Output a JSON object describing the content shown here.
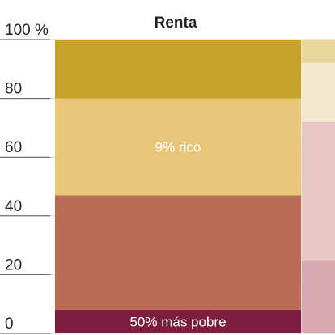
{
  "chart_data": {
    "type": "bar",
    "stacked": true,
    "title": "Renta",
    "ylim": [
      0,
      100
    ],
    "yticks": [
      {
        "value": 0,
        "label": "0"
      },
      {
        "value": 20,
        "label": "20"
      },
      {
        "value": 40,
        "label": "40"
      },
      {
        "value": 60,
        "label": "60"
      },
      {
        "value": 80,
        "label": "80"
      },
      {
        "value": 100,
        "label": "100 %"
      }
    ],
    "grid": true,
    "categories": [
      "Renta"
    ],
    "series": [
      {
        "id": "poorest-50",
        "name": "50% más pobre",
        "values": [
          8
        ],
        "color": "#7d1d3f"
      },
      {
        "id": "middle",
        "values": [
          39
        ],
        "color": "#b96b55"
      },
      {
        "id": "rich-9",
        "name": "9% rico",
        "values": [
          33
        ],
        "color": "#e7c67a"
      },
      {
        "id": "top",
        "values": [
          20
        ],
        "color": "#c8a12a"
      }
    ],
    "partial_next_column": {
      "values": [
        25,
        47,
        20,
        8
      ],
      "colors": [
        "#d9a9b3",
        "#e6c7c3",
        "#f4e8cf",
        "#e8d69b"
      ]
    }
  }
}
